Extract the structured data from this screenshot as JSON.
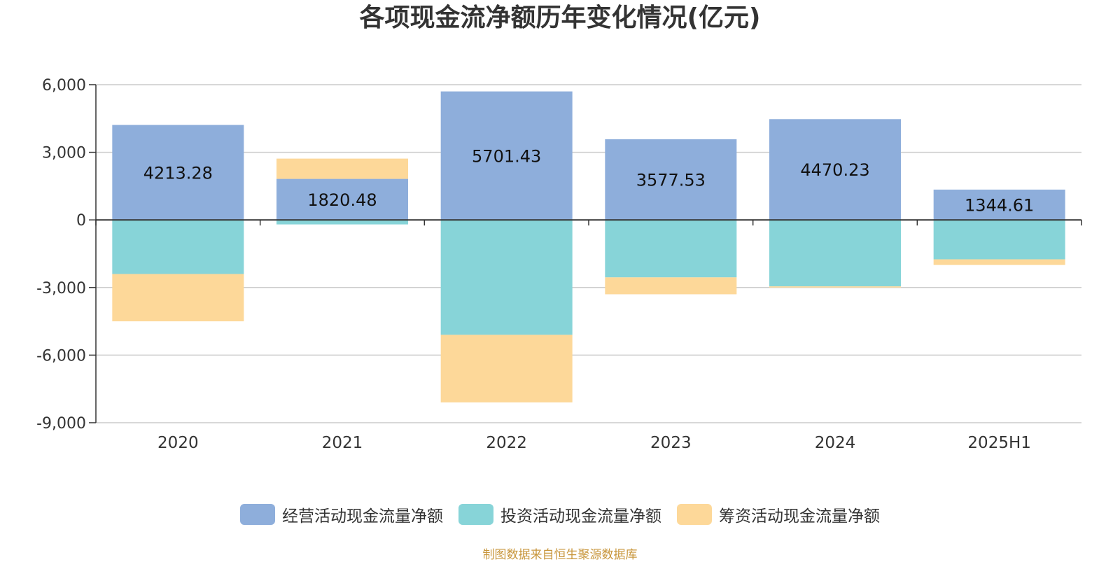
{
  "title": "各项现金流净额历年变化情况(亿元)",
  "source_note": "制图数据来自恒生聚源数据库",
  "colors": {
    "operating": "#8eaedb",
    "investing": "#87d4d8",
    "financing": "#fdd899",
    "grid": "#cccccc",
    "axis": "#333333",
    "text": "#333333"
  },
  "chart_data": {
    "type": "bar",
    "stacked": true,
    "title": "各项现金流净额历年变化情况(亿元)",
    "categories": [
      "2020",
      "2021",
      "2022",
      "2023",
      "2024",
      "2025H1"
    ],
    "ylim": [
      -9000,
      6000
    ],
    "yticks": [
      6000,
      3000,
      0,
      -3000,
      -6000,
      -9000
    ],
    "ytick_labels": [
      "6,000",
      "3,000",
      "0",
      "-3,000",
      "-6,000",
      "-9,000"
    ],
    "grid": true,
    "legend_position": "bottom",
    "series": [
      {
        "name": "经营活动现金流量净额",
        "color_key": "operating",
        "values": [
          4213.28,
          1820.48,
          5701.43,
          3577.53,
          4470.23,
          1344.61
        ],
        "data_labels": [
          "4213.28",
          "1820.48",
          "5701.43",
          "3577.53",
          "4470.23",
          "1344.61"
        ]
      },
      {
        "name": "投资活动现金流量净额",
        "color_key": "investing",
        "values": [
          -2400,
          -200,
          -5100,
          -2550,
          -2950,
          -1750
        ]
      },
      {
        "name": "筹资活动现金流量净额",
        "color_key": "financing",
        "values": [
          -2100,
          900,
          -3000,
          -750,
          -50,
          -250
        ]
      }
    ]
  }
}
